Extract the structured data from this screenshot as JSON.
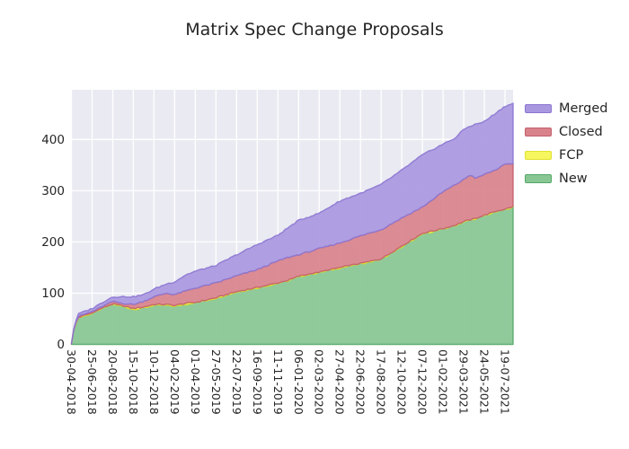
{
  "chart_data": {
    "type": "area",
    "stacked": true,
    "title": "Matrix Spec Change Proposals",
    "xlabel": "",
    "ylabel": "",
    "plot_bg": "#eaeaf2",
    "grid_color": "#ffffff",
    "text_color": "#262626",
    "grid": true,
    "legend_position": "outside-top-right",
    "ylim": [
      0,
      497
    ],
    "y_ticks": [
      0,
      100,
      200,
      300,
      400
    ],
    "x_tick_labels": [
      "30-04-2018",
      "25-06-2018",
      "20-08-2018",
      "15-10-2018",
      "10-12-2018",
      "04-02-2019",
      "01-04-2019",
      "27-05-2019",
      "22-07-2019",
      "16-09-2019",
      "11-11-2019",
      "06-01-2020",
      "02-03-2020",
      "27-04-2020",
      "22-06-2020",
      "17-08-2020",
      "12-10-2020",
      "07-12-2020",
      "01-02-2021",
      "29-03-2021",
      "24-05-2021",
      "19-07-2021"
    ],
    "x_extent_ticks": 21.39,
    "series": [
      {
        "name": "New",
        "fill": "#88c794",
        "edge": "#55a868"
      },
      {
        "name": "FCP",
        "fill": "#f6f65f",
        "edge": "#e0e030"
      },
      {
        "name": "Closed",
        "fill": "#d9828c",
        "edge": "#c2606c"
      },
      {
        "name": "Merged",
        "fill": "#a997e0",
        "edge": "#8b76d2"
      }
    ],
    "legend_order": [
      "Merged",
      "Closed",
      "FCP",
      "New"
    ],
    "samples_note": "t is in x-tick units (0 = 30-04-2018, 1 tick = 8 weeks); v = [New, FCP, Closed, Merged] counts",
    "samples": [
      {
        "t": 0.0,
        "v": [
          1,
          0,
          0,
          1
        ]
      },
      {
        "t": 0.15,
        "v": [
          35,
          1,
          1,
          3
        ]
      },
      {
        "t": 0.35,
        "v": [
          52,
          1,
          2,
          5
        ]
      },
      {
        "t": 1.0,
        "v": [
          60,
          1,
          3,
          6
        ]
      },
      {
        "t": 1.5,
        "v": [
          70,
          1,
          3,
          8
        ]
      },
      {
        "t": 2.0,
        "v": [
          78,
          1,
          5,
          9
        ]
      },
      {
        "t": 2.5,
        "v": [
          74,
          1,
          5,
          13
        ]
      },
      {
        "t": 3.0,
        "v": [
          68,
          2,
          8,
          15
        ]
      },
      {
        "t": 3.5,
        "v": [
          71,
          2,
          11,
          13
        ]
      },
      {
        "t": 4.0,
        "v": [
          76,
          2,
          15,
          15
        ]
      },
      {
        "t": 4.6,
        "v": [
          76,
          2,
          22,
          18
        ]
      },
      {
        "t": 5.0,
        "v": [
          74,
          2,
          21,
          25
        ]
      },
      {
        "t": 5.5,
        "v": [
          78,
          2,
          24,
          31
        ]
      },
      {
        "t": 6.0,
        "v": [
          81,
          1,
          28,
          33
        ]
      },
      {
        "t": 7.0,
        "v": [
          90,
          1,
          29,
          34
        ]
      },
      {
        "t": 8.0,
        "v": [
          102,
          1,
          31,
          41
        ]
      },
      {
        "t": 9.0,
        "v": [
          110,
          1,
          35,
          49
        ]
      },
      {
        "t": 10.0,
        "v": [
          119,
          1,
          43,
          50
        ]
      },
      {
        "t": 10.5,
        "v": [
          124,
          1,
          45,
          58
        ]
      },
      {
        "t": 11.0,
        "v": [
          132,
          1,
          42,
          67
        ]
      },
      {
        "t": 12.0,
        "v": [
          140,
          1,
          46,
          69
        ]
      },
      {
        "t": 13.0,
        "v": [
          149,
          1,
          48,
          82
        ]
      },
      {
        "t": 14.0,
        "v": [
          157,
          1,
          54,
          83
        ]
      },
      {
        "t": 15.0,
        "v": [
          166,
          1,
          57,
          88
        ]
      },
      {
        "t": 16.0,
        "v": [
          190,
          2,
          55,
          93
        ]
      },
      {
        "t": 17.0,
        "v": [
          215,
          2,
          51,
          102
        ]
      },
      {
        "t": 18.0,
        "v": [
          225,
          1,
          72,
          93
        ]
      },
      {
        "t": 18.6,
        "v": [
          232,
          1,
          79,
          91
        ]
      },
      {
        "t": 19.0,
        "v": [
          239,
          1,
          82,
          98
        ]
      },
      {
        "t": 19.3,
        "v": [
          242,
          1,
          88,
          95
        ]
      },
      {
        "t": 19.6,
        "v": [
          245,
          1,
          78,
          106
        ]
      },
      {
        "t": 20.0,
        "v": [
          251,
          1,
          80,
          103
        ]
      },
      {
        "t": 20.5,
        "v": [
          258,
          1,
          81,
          110
        ]
      },
      {
        "t": 21.0,
        "v": [
          263,
          1,
          87,
          114
        ]
      },
      {
        "t": 21.39,
        "v": [
          268,
          1,
          84,
          117
        ]
      }
    ]
  }
}
